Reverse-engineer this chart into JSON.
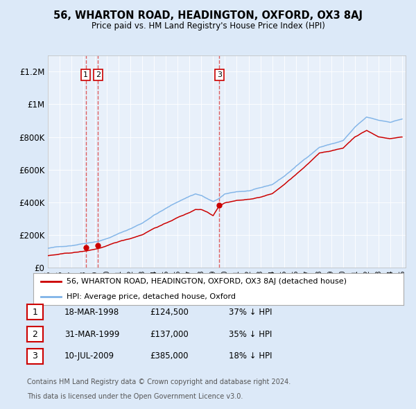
{
  "title": "56, WHARTON ROAD, HEADINGTON, OXFORD, OX3 8AJ",
  "subtitle": "Price paid vs. HM Land Registry's House Price Index (HPI)",
  "legend_label_red": "56, WHARTON ROAD, HEADINGTON, OXFORD, OX3 8AJ (detached house)",
  "legend_label_blue": "HPI: Average price, detached house, Oxford",
  "sale_prices": [
    124500,
    137000,
    385000
  ],
  "sale_years": [
    1998.208,
    1999.247,
    2009.526
  ],
  "sale_labels": [
    "1",
    "2",
    "3"
  ],
  "table_rows": [
    [
      "1",
      "18-MAR-1998",
      "£124,500",
      "37% ↓ HPI"
    ],
    [
      "2",
      "31-MAR-1999",
      "£137,000",
      "35% ↓ HPI"
    ],
    [
      "3",
      "10-JUL-2009",
      "£385,000",
      "18% ↓ HPI"
    ]
  ],
  "footnote1": "Contains HM Land Registry data © Crown copyright and database right 2024.",
  "footnote2": "This data is licensed under the Open Government Licence v3.0.",
  "ylim": [
    0,
    1300000
  ],
  "ylabel_ticks": [
    0,
    200000,
    400000,
    600000,
    800000,
    1000000,
    1200000
  ],
  "ylabel_labels": [
    "£0",
    "£200K",
    "£400K",
    "£600K",
    "£800K",
    "£1M",
    "£1.2M"
  ],
  "background_color": "#dce9f8",
  "plot_bg_color": "#e8f0fa",
  "red_color": "#cc0000",
  "blue_color": "#7fb3e8",
  "hpi_anchor_years": [
    1995,
    1997,
    1998.2,
    1999.2,
    2000,
    2001,
    2002,
    2003,
    2004,
    2005,
    2006,
    2007,
    2007.5,
    2008,
    2008.5,
    2009,
    2009.5,
    2010,
    2011,
    2012,
    2013,
    2014,
    2015,
    2016,
    2017,
    2018,
    2019,
    2020,
    2021,
    2022,
    2023,
    2024,
    2025
  ],
  "hpi_anchor_vals": [
    120000,
    138000,
    155000,
    168000,
    185000,
    215000,
    245000,
    280000,
    330000,
    370000,
    410000,
    445000,
    460000,
    450000,
    430000,
    410000,
    430000,
    455000,
    470000,
    475000,
    490000,
    510000,
    560000,
    620000,
    680000,
    740000,
    760000,
    780000,
    860000,
    920000,
    900000,
    890000,
    910000
  ],
  "red_anchor_years": [
    1995,
    1997,
    1998.2,
    1999.2,
    2000,
    2001,
    2002,
    2003,
    2004,
    2005,
    2006,
    2007,
    2007.5,
    2008,
    2008.5,
    2009,
    2009.5,
    2010,
    2011,
    2012,
    2013,
    2014,
    2015,
    2016,
    2017,
    2018,
    2019,
    2020,
    2021,
    2022,
    2023,
    2024,
    2025
  ],
  "red_anchor_vals": [
    75000,
    90000,
    100000,
    115000,
    130000,
    155000,
    175000,
    200000,
    240000,
    270000,
    305000,
    335000,
    355000,
    355000,
    340000,
    320000,
    380000,
    400000,
    415000,
    420000,
    435000,
    455000,
    510000,
    570000,
    630000,
    700000,
    715000,
    730000,
    800000,
    840000,
    800000,
    790000,
    800000
  ]
}
